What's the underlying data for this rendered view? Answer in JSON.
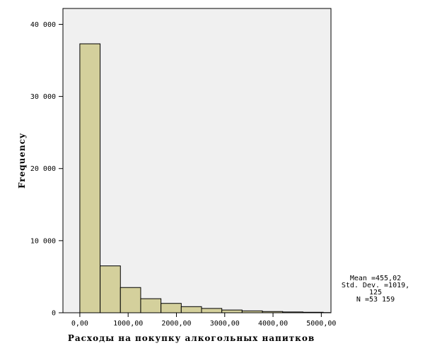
{
  "chart_data": {
    "type": "bar",
    "title": "",
    "xlabel": "Расходы на покупку алкогольных напитков",
    "ylabel": "Frequency",
    "xlim": [
      -350,
      5200
    ],
    "ylim": [
      0,
      42200
    ],
    "x_ticks": [
      {
        "value": 0,
        "label": "0,00"
      },
      {
        "value": 1000,
        "label": "1000,00"
      },
      {
        "value": 2000,
        "label": "2000,00"
      },
      {
        "value": 3000,
        "label": "3000,00"
      },
      {
        "value": 4000,
        "label": "4000,00"
      },
      {
        "value": 5000,
        "label": "5000,00"
      }
    ],
    "y_ticks": [
      {
        "value": 0,
        "label": "0"
      },
      {
        "value": 10000,
        "label": "10 000"
      },
      {
        "value": 20000,
        "label": "20 000"
      },
      {
        "value": 30000,
        "label": "30 000"
      },
      {
        "value": 40000,
        "label": "40 000"
      }
    ],
    "bins": [
      {
        "start": 0,
        "end": 420,
        "count": 37300
      },
      {
        "start": 420,
        "end": 840,
        "count": 6500
      },
      {
        "start": 840,
        "end": 1260,
        "count": 3500
      },
      {
        "start": 1260,
        "end": 1680,
        "count": 1950
      },
      {
        "start": 1680,
        "end": 2100,
        "count": 1300
      },
      {
        "start": 2100,
        "end": 2520,
        "count": 850
      },
      {
        "start": 2520,
        "end": 2940,
        "count": 600
      },
      {
        "start": 2940,
        "end": 3360,
        "count": 380
      },
      {
        "start": 3360,
        "end": 3780,
        "count": 260
      },
      {
        "start": 3780,
        "end": 4200,
        "count": 170
      },
      {
        "start": 4200,
        "end": 4620,
        "count": 110
      },
      {
        "start": 4620,
        "end": 5040,
        "count": 70
      },
      {
        "start": 5040,
        "end": 5180,
        "count": 30
      }
    ],
    "bar_color": "#d4d09c",
    "plot_background": "#f0f0f0",
    "grid": false,
    "legend": "none"
  },
  "stats": {
    "mean": "Mean =455,02",
    "std_line1": "Std. Dev. =1019,",
    "std_line2": "125",
    "n": "N =53 159"
  }
}
